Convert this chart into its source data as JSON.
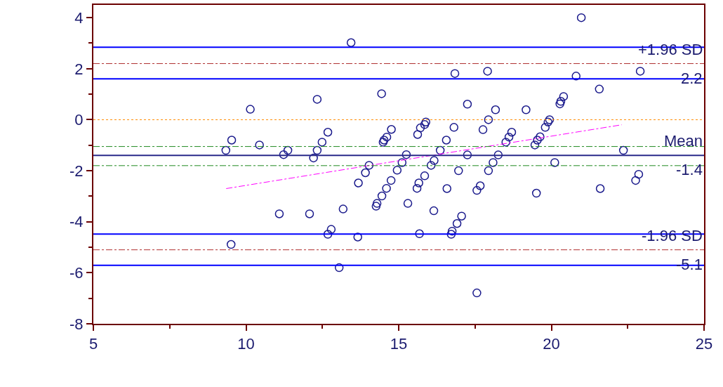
{
  "chart_data": {
    "type": "scatter",
    "xlim": [
      5,
      25
    ],
    "ylim": [
      -8,
      4.5
    ],
    "xticks": [
      5,
      10,
      15,
      20,
      25
    ],
    "yticks": [
      -8,
      -6,
      -4,
      -2,
      0,
      2,
      4
    ],
    "marker": "circle",
    "series": [
      {
        "color": "#1a1a8c",
        "x": [
          9.34,
          9.53,
          10.14,
          10.44,
          11.23,
          11.37,
          12.33,
          12.21,
          12.33,
          12.49,
          12.68,
          13.44,
          14.44,
          13.91,
          14.03,
          14.49,
          14.52,
          14.61,
          14.76,
          14.95,
          15.11,
          15.25,
          15.62,
          15.71,
          11.09,
          12.08,
          9.51,
          12.68,
          12.79,
          13.18,
          13.05,
          13.66,
          13.68,
          14.26,
          14.29,
          14.45,
          14.6,
          14.75,
          15.3,
          15.6,
          15.66,
          15.68,
          20.98,
          16.84,
          17.91,
          20.81,
          22.91,
          21.57,
          20.4,
          20.31,
          20.28,
          17.25,
          18.17,
          19.17,
          17.94,
          19.94,
          19.89,
          19.8,
          16.81,
          17.76,
          18.7,
          18.61,
          18.51,
          19.63,
          19.54,
          19.46,
          16.56,
          16.36,
          17.25,
          18.26,
          22.36,
          15.89,
          15.85,
          16.16,
          16.06,
          18.09,
          20.11,
          16.96,
          17.94,
          22.86,
          22.76,
          15.85,
          16.58,
          17.67,
          17.56,
          19.51,
          21.6,
          16.15,
          17.06,
          16.91,
          16.75,
          16.72,
          17.56
        ],
        "values": [
          -1.2,
          -0.8,
          0.41,
          -0.99,
          -1.37,
          -1.2,
          0.8,
          -1.5,
          -1.2,
          -0.88,
          -0.49,
          3.02,
          1.02,
          -2.08,
          -1.79,
          -0.88,
          -0.8,
          -0.68,
          -0.38,
          -1.98,
          -1.68,
          -1.37,
          -0.58,
          -0.32,
          -3.69,
          -3.69,
          -4.89,
          -4.49,
          -4.3,
          -3.5,
          -5.8,
          -4.6,
          -2.48,
          -3.39,
          -3.28,
          -2.99,
          -2.69,
          -2.38,
          -3.28,
          -2.69,
          -2.48,
          -4.47,
          4.0,
          1.81,
          1.9,
          1.71,
          1.9,
          1.2,
          0.91,
          0.72,
          0.62,
          0.61,
          0.39,
          0.39,
          0.0,
          0.0,
          -0.09,
          -0.3,
          -0.3,
          -0.39,
          -0.49,
          -0.68,
          -0.88,
          -0.67,
          -0.8,
          -0.99,
          -0.8,
          -1.2,
          -1.38,
          -1.38,
          -1.2,
          -0.09,
          -0.19,
          -1.6,
          -1.79,
          -1.68,
          -1.68,
          -2.0,
          -2.0,
          -2.14,
          -2.38,
          -2.2,
          -2.7,
          -2.59,
          -2.77,
          -2.88,
          -2.7,
          -3.57,
          -3.78,
          -4.07,
          -4.37,
          -4.49,
          -6.79
        ]
      },
      {
        "type": "line",
        "color": "#ff00ff",
        "line_style": "dashed",
        "marker": "none",
        "x": [
          9.35,
          22.3
        ],
        "values": [
          -2.7,
          -0.2
        ]
      }
    ],
    "ref_lines": [
      {
        "axis": "y",
        "value": 2.84,
        "color": "#0000ff",
        "line_style": "solid"
      },
      {
        "axis": "y",
        "value": 2.2,
        "label": "+1.96 SD",
        "color": "#b03030",
        "line_style": "dashed"
      },
      {
        "axis": "y",
        "value": 1.6,
        "color": "#0000ff",
        "line_style": "solid"
      },
      {
        "axis": "y",
        "value": 0,
        "color": "#ff8c00",
        "line_style": "dotted"
      },
      {
        "axis": "y",
        "value": -1.05,
        "color": "#228b22",
        "line_style": "dashed"
      },
      {
        "axis": "y",
        "value": -1.4,
        "label": "Mean",
        "color": "#2a2a8a",
        "line_style": "solid"
      },
      {
        "axis": "y",
        "value": -1.8,
        "color": "#228b22",
        "line_style": "dashed"
      },
      {
        "axis": "y",
        "value": -4.48,
        "color": "#0000ff",
        "line_style": "solid"
      },
      {
        "axis": "y",
        "value": -5.1,
        "label": "-1.96 SD",
        "color": "#b03030",
        "line_style": "dashed"
      },
      {
        "axis": "y",
        "value": -5.71,
        "color": "#0000ff",
        "line_style": "solid"
      }
    ],
    "annotations": [
      {
        "text": "2.2",
        "y": 2.2
      },
      {
        "text": "-1.4",
        "y": -1.4
      },
      {
        "text": "-5.1",
        "y": -5.1
      }
    ]
  }
}
